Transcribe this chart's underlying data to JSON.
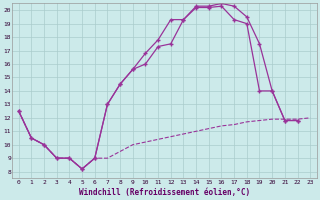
{
  "xlabel": "Windchill (Refroidissement éolien,°C)",
  "bg_color": "#cceaea",
  "grid_color": "#aacccc",
  "line_color": "#993399",
  "xlim": [
    -0.5,
    23.5
  ],
  "ylim": [
    7.5,
    20.5
  ],
  "yticks": [
    8,
    9,
    10,
    11,
    12,
    13,
    14,
    15,
    16,
    17,
    18,
    19,
    20
  ],
  "xticks": [
    0,
    1,
    2,
    3,
    4,
    5,
    6,
    7,
    8,
    9,
    10,
    11,
    12,
    13,
    14,
    15,
    16,
    17,
    18,
    19,
    20,
    21,
    22,
    23
  ],
  "line1_x": [
    0,
    1,
    2,
    3,
    4,
    5,
    6,
    7,
    8,
    9,
    10,
    11,
    12,
    13,
    14,
    15,
    16,
    17,
    18,
    19,
    20,
    21,
    22
  ],
  "line1_y": [
    12.5,
    10.5,
    10.0,
    9.0,
    9.0,
    8.2,
    9.0,
    13.0,
    14.5,
    15.6,
    16.0,
    17.3,
    17.5,
    19.3,
    20.2,
    20.2,
    20.3,
    19.3,
    19.0,
    14.0,
    14.0,
    11.8,
    11.8
  ],
  "line2_x": [
    0,
    1,
    2,
    3,
    4,
    5,
    6,
    7,
    8,
    9,
    10,
    11,
    12,
    13,
    14,
    15,
    16,
    17,
    18,
    19,
    20,
    21,
    22
  ],
  "line2_y": [
    12.5,
    10.5,
    10.0,
    9.0,
    9.0,
    8.2,
    9.0,
    13.0,
    14.5,
    15.6,
    16.8,
    17.8,
    19.3,
    19.3,
    20.3,
    20.3,
    20.5,
    20.3,
    19.5,
    17.5,
    14.0,
    11.8,
    11.8
  ],
  "line3_x": [
    0,
    1,
    2,
    3,
    4,
    5,
    6,
    7,
    8,
    9,
    10,
    11,
    12,
    13,
    14,
    15,
    16,
    17,
    18,
    19,
    20,
    21,
    22,
    23
  ],
  "line3_y": [
    12.5,
    10.5,
    10.0,
    9.0,
    9.0,
    8.2,
    9.0,
    9.0,
    9.5,
    10.0,
    10.2,
    10.4,
    10.6,
    10.8,
    11.0,
    11.2,
    11.4,
    11.5,
    11.7,
    11.8,
    11.9,
    11.9,
    11.9,
    12.0
  ]
}
